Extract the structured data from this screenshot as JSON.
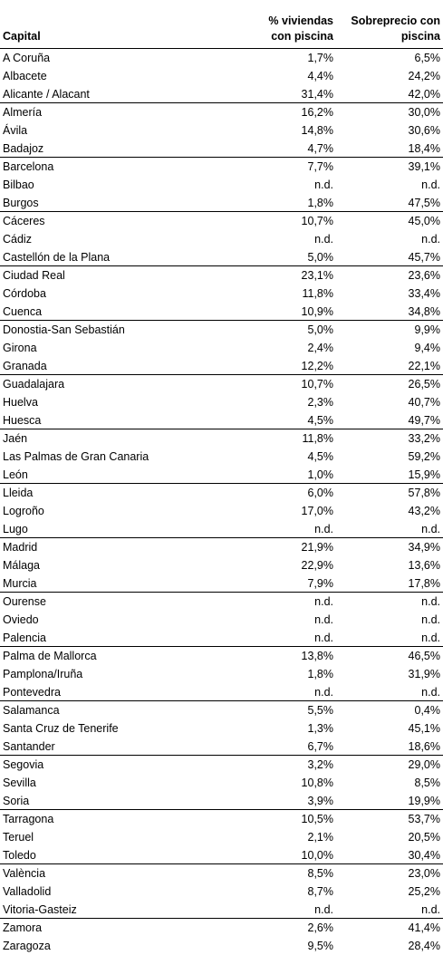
{
  "table": {
    "headers": {
      "capital": "Capital",
      "pct_piscina": "% viviendas\ncon piscina",
      "sobreprecio": "Sobreprecio con\npiscina"
    },
    "rows": [
      {
        "capital": "A Coruña",
        "pct": "1,7%",
        "sob": "6,5%"
      },
      {
        "capital": "Albacete",
        "pct": "4,4%",
        "sob": "24,2%"
      },
      {
        "capital": "Alicante / Alacant",
        "pct": "31,4%",
        "sob": "42,0%"
      },
      {
        "capital": "Almería",
        "pct": "16,2%",
        "sob": "30,0%"
      },
      {
        "capital": "Ávila",
        "pct": "14,8%",
        "sob": "30,6%"
      },
      {
        "capital": "Badajoz",
        "pct": "4,7%",
        "sob": "18,4%"
      },
      {
        "capital": "Barcelona",
        "pct": "7,7%",
        "sob": "39,1%"
      },
      {
        "capital": "Bilbao",
        "pct": "n.d.",
        "sob": "n.d."
      },
      {
        "capital": "Burgos",
        "pct": "1,8%",
        "sob": "47,5%"
      },
      {
        "capital": "Cáceres",
        "pct": "10,7%",
        "sob": "45,0%"
      },
      {
        "capital": "Cádiz",
        "pct": "n.d.",
        "sob": "n.d."
      },
      {
        "capital": "Castellón de la Plana",
        "pct": "5,0%",
        "sob": "45,7%"
      },
      {
        "capital": "Ciudad Real",
        "pct": "23,1%",
        "sob": "23,6%"
      },
      {
        "capital": "Córdoba",
        "pct": "11,8%",
        "sob": "33,4%"
      },
      {
        "capital": "Cuenca",
        "pct": "10,9%",
        "sob": "34,8%"
      },
      {
        "capital": "Donostia-San Sebastián",
        "pct": "5,0%",
        "sob": "9,9%"
      },
      {
        "capital": "Girona",
        "pct": "2,4%",
        "sob": "9,4%"
      },
      {
        "capital": "Granada",
        "pct": "12,2%",
        "sob": "22,1%"
      },
      {
        "capital": "Guadalajara",
        "pct": "10,7%",
        "sob": "26,5%"
      },
      {
        "capital": "Huelva",
        "pct": "2,3%",
        "sob": "40,7%"
      },
      {
        "capital": "Huesca",
        "pct": "4,5%",
        "sob": "49,7%"
      },
      {
        "capital": "Jaén",
        "pct": "11,8%",
        "sob": "33,2%"
      },
      {
        "capital": "Las Palmas de Gran Canaria",
        "pct": "4,5%",
        "sob": "59,2%"
      },
      {
        "capital": "León",
        "pct": "1,0%",
        "sob": "15,9%"
      },
      {
        "capital": "Lleida",
        "pct": "6,0%",
        "sob": "57,8%"
      },
      {
        "capital": "Logroño",
        "pct": "17,0%",
        "sob": "43,2%"
      },
      {
        "capital": "Lugo",
        "pct": "n.d.",
        "sob": "n.d."
      },
      {
        "capital": "Madrid",
        "pct": "21,9%",
        "sob": "34,9%"
      },
      {
        "capital": "Málaga",
        "pct": "22,9%",
        "sob": "13,6%"
      },
      {
        "capital": "Murcia",
        "pct": "7,9%",
        "sob": "17,8%"
      },
      {
        "capital": "Ourense",
        "pct": "n.d.",
        "sob": "n.d."
      },
      {
        "capital": "Oviedo",
        "pct": "n.d.",
        "sob": "n.d."
      },
      {
        "capital": "Palencia",
        "pct": "n.d.",
        "sob": "n.d."
      },
      {
        "capital": "Palma de Mallorca",
        "pct": "13,8%",
        "sob": "46,5%"
      },
      {
        "capital": "Pamplona/Iruña",
        "pct": "1,8%",
        "sob": "31,9%"
      },
      {
        "capital": "Pontevedra",
        "pct": "n.d.",
        "sob": "n.d."
      },
      {
        "capital": "Salamanca",
        "pct": "5,5%",
        "sob": "0,4%"
      },
      {
        "capital": "Santa Cruz de Tenerife",
        "pct": "1,3%",
        "sob": "45,1%"
      },
      {
        "capital": "Santander",
        "pct": "6,7%",
        "sob": "18,6%"
      },
      {
        "capital": "Segovia",
        "pct": "3,2%",
        "sob": "29,0%"
      },
      {
        "capital": "Sevilla",
        "pct": "10,8%",
        "sob": "8,5%"
      },
      {
        "capital": "Soria",
        "pct": "3,9%",
        "sob": "19,9%"
      },
      {
        "capital": "Tarragona",
        "pct": "10,5%",
        "sob": "53,7%"
      },
      {
        "capital": "Teruel",
        "pct": "2,1%",
        "sob": "20,5%"
      },
      {
        "capital": "Toledo",
        "pct": "10,0%",
        "sob": "30,4%"
      },
      {
        "capital": "València",
        "pct": "8,5%",
        "sob": "23,0%"
      },
      {
        "capital": "Valladolid",
        "pct": "8,7%",
        "sob": "25,2%"
      },
      {
        "capital": "Vitoria-Gasteiz",
        "pct": "n.d.",
        "sob": "n.d."
      },
      {
        "capital": "Zamora",
        "pct": "2,6%",
        "sob": "41,4%"
      },
      {
        "capital": "Zaragoza",
        "pct": "9,5%",
        "sob": "28,4%"
      }
    ]
  }
}
